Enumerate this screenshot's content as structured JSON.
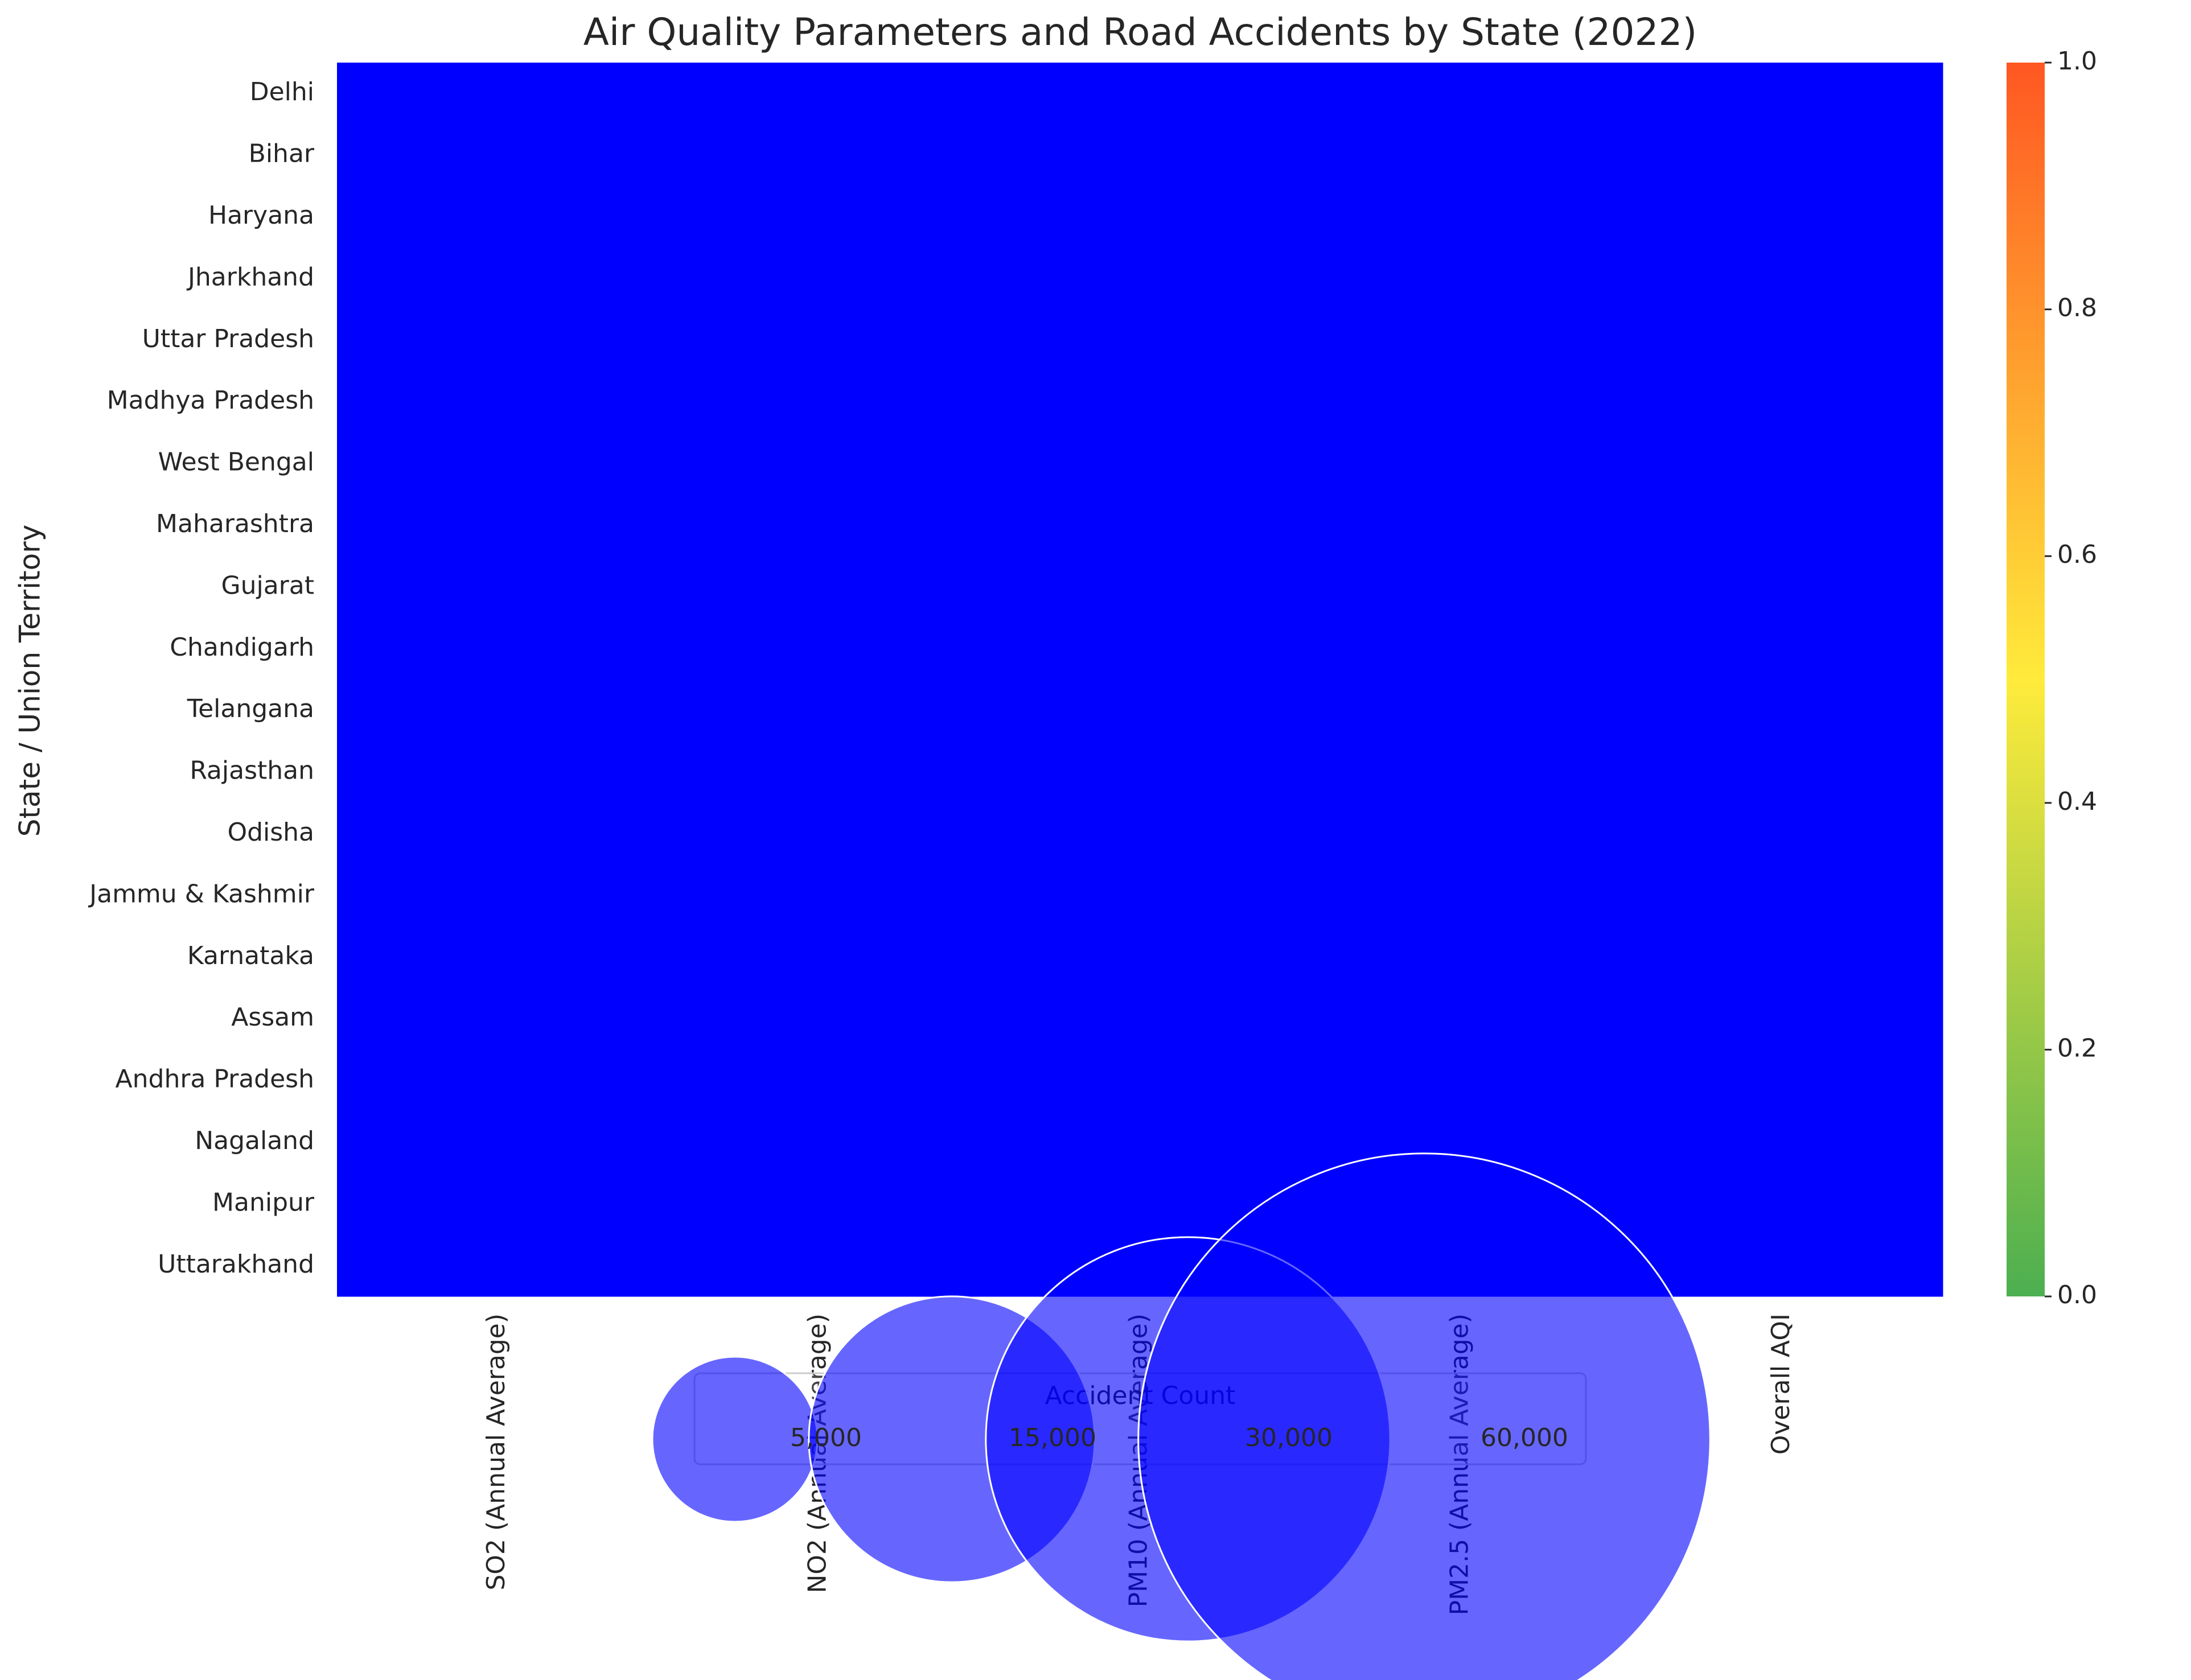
{
  "chart_data": {
    "type": "heatmap",
    "title": "Air Quality Parameters and Road Accidents by State (2022)",
    "ylabel": "State / Union Territory",
    "rows": [
      "Delhi",
      "Bihar",
      "Haryana",
      "Jharkhand",
      "Uttar Pradesh",
      "Madhya Pradesh",
      "West Bengal",
      "Maharashtra",
      "Gujarat",
      "Chandigarh",
      "Telangana",
      "Rajasthan",
      "Odisha",
      "Jammu & Kashmir",
      "Karnataka",
      "Assam",
      "Andhra Pradesh",
      "Nagaland",
      "Manipur",
      "Uttarakhand"
    ],
    "columns": [
      "SO2 (Annual Average)",
      "NO2 (Annual Average)",
      "PM10 (Annual Average)",
      "PM2.5 (Annual Average)",
      "Overall AQI"
    ],
    "cell_color": "#0000ff",
    "colorbar": {
      "lim": [
        0,
        1
      ],
      "colors": [
        "#4caf50",
        "#ffeb3b",
        "#ff5722"
      ],
      "ticks": [
        {
          "value": 0,
          "label": "0.0"
        },
        {
          "value": 0.2,
          "label": "0.2"
        },
        {
          "value": 0.4,
          "label": "0.4"
        },
        {
          "value": 0.6,
          "label": "0.6"
        },
        {
          "value": 0.8,
          "label": "0.8"
        },
        {
          "value": 1,
          "label": "1.0"
        }
      ]
    },
    "size_legend": {
      "title": "Accident Count",
      "color": "#0000ff",
      "items": [
        {
          "value": 5000,
          "label": "5,000"
        },
        {
          "value": 15000,
          "label": "15,000"
        },
        {
          "value": 30000,
          "label": "30,000"
        },
        {
          "value": 60000,
          "label": "60,000"
        }
      ]
    }
  }
}
